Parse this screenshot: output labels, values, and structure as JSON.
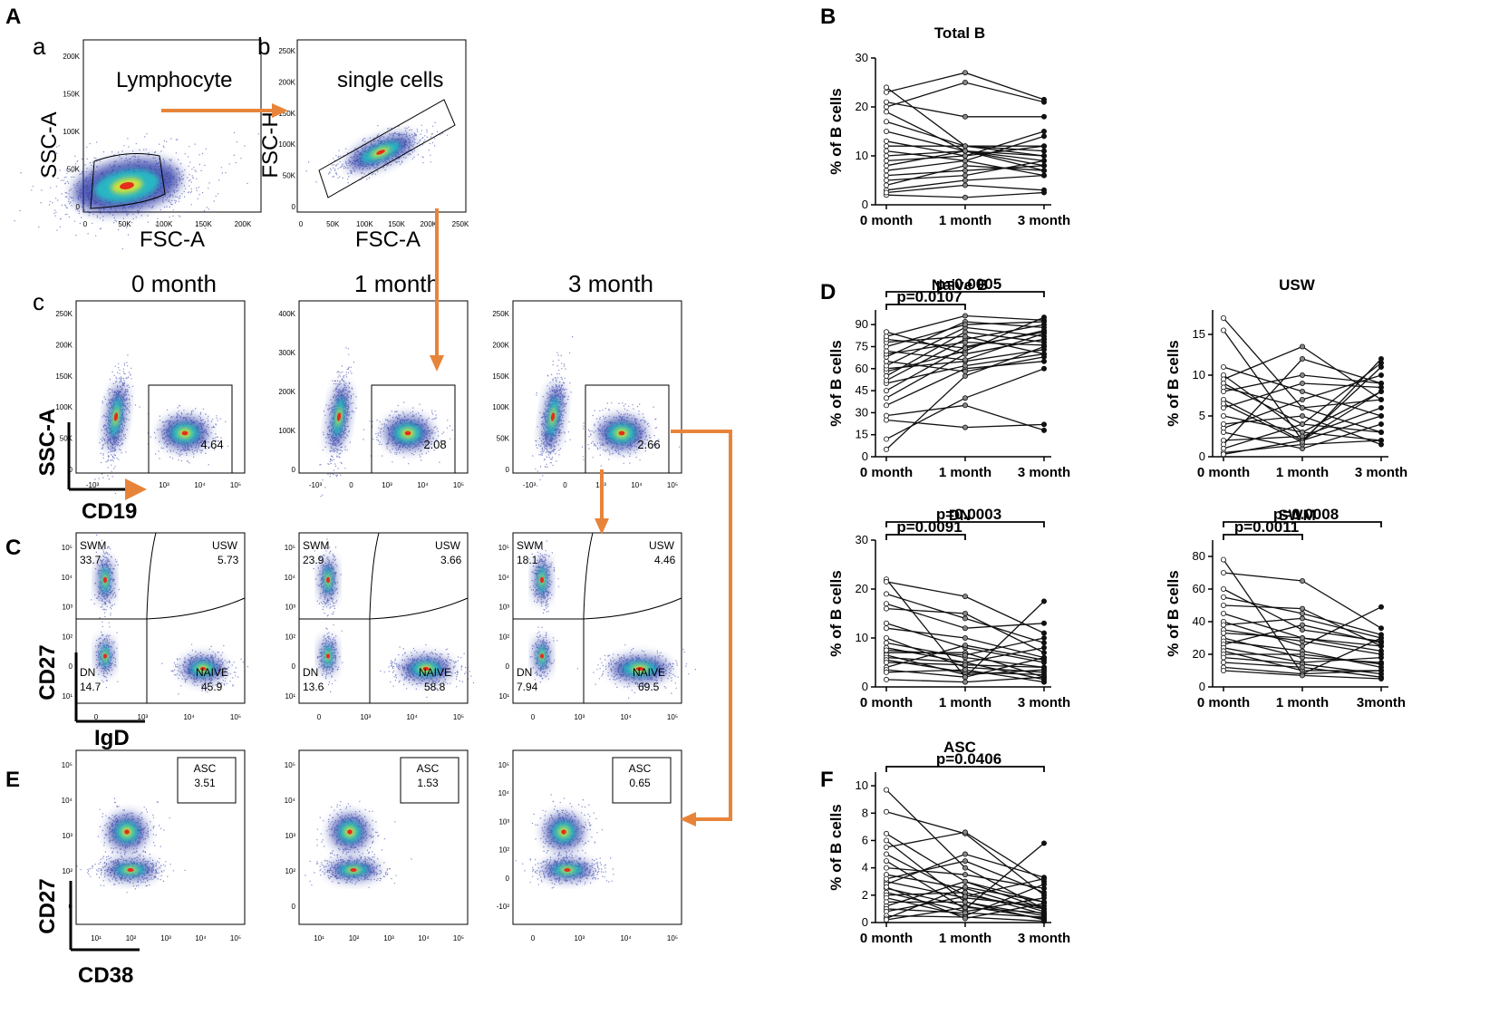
{
  "panel_labels": {
    "A": "A",
    "B": "B",
    "C": "C",
    "D": "D",
    "E": "E",
    "F": "F"
  },
  "subpanel_labels": {
    "a": "a",
    "b": "b",
    "c": "c"
  },
  "colors": {
    "arrow": "#e8843a",
    "density_low": "#1b2a9e",
    "density_mid": "#22c7c7",
    "density_high": "#e8241a"
  },
  "flow": {
    "lymphocyte": {
      "title": "Lymphocyte",
      "xlabel": "FSC-A",
      "ylabel": "SSC-A",
      "yticks": [
        "0",
        "50K",
        "100K",
        "150K",
        "200K"
      ],
      "xticks": [
        "0",
        "50K",
        "100K",
        "150K",
        "200K"
      ]
    },
    "single_cells": {
      "title": "single cells",
      "xlabel": "FSC-A",
      "ylabel": "FSC-H",
      "yticks": [
        "0",
        "50K",
        "100K",
        "150K",
        "200K",
        "250K"
      ],
      "xticks": [
        "0",
        "50K",
        "100K",
        "150K",
        "200K",
        "250K"
      ]
    },
    "timepoints": [
      "0 month",
      "1 month",
      "3 month"
    ],
    "cd19": {
      "ylabel": "SSC-A",
      "xlabel": "CD19",
      "yticks": [
        [
          "0",
          "50K",
          "100K",
          "150K",
          "200K",
          "250K"
        ],
        [
          "0",
          "100K",
          "200K",
          "300K",
          "400K"
        ],
        [
          "0",
          "50K",
          "100K",
          "150K",
          "200K",
          "250K"
        ]
      ],
      "xticks": [
        "-10³",
        "0",
        "10³",
        "10⁴",
        "10⁵"
      ],
      "gate_values": [
        "4.64",
        "2.08",
        "2.66"
      ]
    },
    "cd27_igd": {
      "ylabel": "CD27",
      "xlabel": "IgD",
      "quad_names": {
        "tl": "SWM",
        "tr": "USW",
        "bl": "DN",
        "br": "NAIVE"
      },
      "values": [
        {
          "SWM": "33.7",
          "USW": "5.73",
          "DN": "14.7",
          "NAIVE": "45.9"
        },
        {
          "SWM": "23.9",
          "USW": "3.66",
          "DN": "13.6",
          "NAIVE": "58.8"
        },
        {
          "SWM": "18.1",
          "USW": "4.46",
          "DN": "7.94",
          "NAIVE": "69.5"
        }
      ],
      "yticks": [
        "10⁵",
        "10⁴",
        "10³",
        "10²",
        "0",
        "10¹"
      ],
      "xticks": [
        "0",
        "10³",
        "10⁴",
        "10⁵"
      ]
    },
    "cd27_cd38": {
      "ylabel": "CD27",
      "xlabel": "CD38",
      "gate_name": "ASC",
      "values": [
        "3.51",
        "1.53",
        "0.65"
      ],
      "yticks": [
        "10⁵",
        "10⁴",
        "10³",
        "10²",
        "0"
      ],
      "yticks_alt": [
        "10⁵",
        "10⁴",
        "10³",
        "10²",
        "0",
        "-10²"
      ],
      "xticks": [
        "10¹",
        "10²",
        "10³",
        "10⁴",
        "10⁵"
      ],
      "xticks_alt": [
        "0",
        "10³",
        "10⁴",
        "10⁵"
      ]
    }
  },
  "chart_data": [
    {
      "id": "total_b",
      "type": "line",
      "title": "Total B",
      "ylabel": "% of B cells",
      "categories": [
        "0 month",
        "1 month",
        "3 month"
      ],
      "ylim": [
        0,
        30
      ],
      "yticks": [
        0,
        10,
        20,
        30
      ],
      "series": [
        [
          2,
          1.5,
          2.5
        ],
        [
          3,
          5,
          6
        ],
        [
          4,
          8,
          7
        ],
        [
          5,
          6,
          9
        ],
        [
          6,
          7,
          8
        ],
        [
          7,
          9,
          6
        ],
        [
          8,
          11,
          10
        ],
        [
          9,
          10,
          12
        ],
        [
          10,
          11,
          7
        ],
        [
          11,
          9,
          14
        ],
        [
          12,
          12,
          11
        ],
        [
          13,
          10,
          15
        ],
        [
          15,
          11,
          9
        ],
        [
          17,
          12,
          12
        ],
        [
          19,
          11,
          8
        ],
        [
          20,
          25,
          21
        ],
        [
          21,
          18,
          18
        ],
        [
          23,
          27,
          21.5
        ],
        [
          24,
          12,
          10
        ],
        [
          2.5,
          4,
          3
        ]
      ],
      "annotations": []
    },
    {
      "id": "naive_b",
      "type": "line",
      "title": "Naive B",
      "ylabel": "% of B cells",
      "categories": [
        "0 month",
        "1 month",
        "3 month"
      ],
      "ylim": [
        0,
        100
      ],
      "yticks": [
        0,
        15,
        30,
        45,
        60,
        75,
        90
      ],
      "series": [
        [
          5,
          55,
          75
        ],
        [
          12,
          40,
          60
        ],
        [
          25,
          20,
          22
        ],
        [
          28,
          35,
          18
        ],
        [
          35,
          60,
          65
        ],
        [
          40,
          70,
          80
        ],
        [
          45,
          75,
          85
        ],
        [
          50,
          62,
          70
        ],
        [
          52,
          80,
          90
        ],
        [
          55,
          85,
          78
        ],
        [
          58,
          72,
          95
        ],
        [
          60,
          65,
          73
        ],
        [
          62,
          88,
          82
        ],
        [
          65,
          58,
          68
        ],
        [
          68,
          92,
          88
        ],
        [
          70,
          78,
          76
        ],
        [
          72,
          66,
          84
        ],
        [
          75,
          90,
          92
        ],
        [
          78,
          82,
          70
        ],
        [
          80,
          74,
          86
        ],
        [
          82,
          96,
          93
        ],
        [
          85,
          70,
          80
        ]
      ],
      "annotations": [
        {
          "text": "p=0.0005",
          "from": 0,
          "to": 2,
          "level": 0
        },
        {
          "text": "p=0.0107",
          "from": 0,
          "to": 1,
          "level": 1
        }
      ]
    },
    {
      "id": "usw",
      "type": "line",
      "title": "USW",
      "ylabel": "% of B cells",
      "categories": [
        "0 month",
        "1 month",
        "3 month"
      ],
      "ylim": [
        0,
        18
      ],
      "yticks": [
        0,
        5,
        10,
        15
      ],
      "series": [
        [
          17,
          6,
          3
        ],
        [
          15.5,
          2,
          11
        ],
        [
          11,
          8,
          5
        ],
        [
          10,
          3,
          8
        ],
        [
          9.5,
          13.5,
          7
        ],
        [
          9,
          4,
          11.5
        ],
        [
          8.5,
          6,
          7
        ],
        [
          8,
          10,
          9
        ],
        [
          7,
          2,
          5
        ],
        [
          6,
          9,
          8.5
        ],
        [
          5,
          3,
          2
        ],
        [
          3.5,
          7,
          10
        ],
        [
          3,
          1,
          4
        ],
        [
          2,
          2.5,
          6
        ],
        [
          1.5,
          12,
          9
        ],
        [
          1,
          4,
          3
        ],
        [
          0.5,
          1.5,
          2
        ],
        [
          0.3,
          2,
          8
        ],
        [
          4,
          5,
          1.5
        ],
        [
          6.5,
          1.8,
          12
        ]
      ],
      "annotations": []
    },
    {
      "id": "dn",
      "type": "line",
      "title": "DN",
      "ylabel": "% of B cells",
      "categories": [
        "0 month",
        "1 month",
        "3 month"
      ],
      "ylim": [
        0,
        30
      ],
      "yticks": [
        0,
        10,
        20,
        30
      ],
      "series": [
        [
          22,
          2,
          17.5
        ],
        [
          21.5,
          18.5,
          11
        ],
        [
          19,
          14,
          9
        ],
        [
          17,
          12,
          13
        ],
        [
          16,
          15,
          7
        ],
        [
          13,
          8,
          5
        ],
        [
          12,
          10,
          6
        ],
        [
          10,
          4,
          3
        ],
        [
          9,
          6,
          4
        ],
        [
          8,
          5,
          8
        ],
        [
          7,
          7,
          2
        ],
        [
          6.5,
          2.5,
          3.5
        ],
        [
          6,
          5,
          1.5
        ],
        [
          5.5,
          3,
          2.5
        ],
        [
          5,
          4.5,
          4
        ],
        [
          4,
          8.5,
          5.5
        ],
        [
          3.5,
          2,
          6
        ],
        [
          3,
          3.5,
          1
        ],
        [
          1.5,
          1,
          2
        ],
        [
          7.5,
          6.5,
          10
        ]
      ],
      "annotations": [
        {
          "text": "p=0.0003",
          "from": 0,
          "to": 2,
          "level": 0
        },
        {
          "text": "p=0.0091",
          "from": 0,
          "to": 1,
          "level": 1
        }
      ]
    },
    {
      "id": "swm",
      "type": "line",
      "title": "SWM",
      "ylabel": "% of B cells",
      "categories": [
        "0 month",
        "1 month",
        "3month"
      ],
      "ylim": [
        0,
        90
      ],
      "yticks": [
        0,
        20,
        40,
        60,
        80
      ],
      "series": [
        [
          78,
          8,
          30
        ],
        [
          70,
          65,
          36
        ],
        [
          60,
          35,
          28
        ],
        [
          50,
          48,
          25
        ],
        [
          45,
          30,
          22
        ],
        [
          40,
          25,
          49
        ],
        [
          38,
          42,
          30
        ],
        [
          35,
          28,
          20
        ],
        [
          33,
          30,
          25
        ],
        [
          30,
          18,
          15
        ],
        [
          28,
          22,
          12
        ],
        [
          26,
          38,
          27
        ],
        [
          24,
          15,
          18
        ],
        [
          22,
          10,
          10
        ],
        [
          20,
          20,
          14
        ],
        [
          18,
          14,
          8
        ],
        [
          15,
          12,
          6
        ],
        [
          12,
          8,
          10
        ],
        [
          10,
          7,
          5
        ],
        [
          55,
          45,
          32
        ]
      ],
      "annotations": [
        {
          "text": "p=0.0008",
          "from": 0,
          "to": 2,
          "level": 0
        },
        {
          "text": "p=0.0011",
          "from": 0,
          "to": 1,
          "level": 1
        }
      ]
    },
    {
      "id": "asc",
      "type": "line",
      "title": "ASC",
      "ylabel": "% of B cells",
      "categories": [
        "0 month",
        "1 month",
        "3 month"
      ],
      "ylim": [
        0,
        11
      ],
      "yticks": [
        0,
        2,
        4,
        6,
        8,
        10
      ],
      "series": [
        [
          9.7,
          4,
          1
        ],
        [
          8.1,
          6.5,
          2
        ],
        [
          6.5,
          3,
          1.5
        ],
        [
          6,
          1.5,
          0.5
        ],
        [
          5.5,
          6.6,
          3
        ],
        [
          5,
          2,
          1
        ],
        [
          4.5,
          1,
          5.8
        ],
        [
          4,
          3.5,
          2.5
        ],
        [
          3.5,
          2.5,
          0.8
        ],
        [
          3,
          1.8,
          1.2
        ],
        [
          2.8,
          5,
          3.3
        ],
        [
          2.5,
          1.2,
          0.3
        ],
        [
          2.2,
          0.8,
          1.8
        ],
        [
          2,
          2.2,
          0.6
        ],
        [
          1.8,
          0.5,
          2.8
        ],
        [
          1.5,
          1.5,
          0.2
        ],
        [
          1.2,
          3,
          1
        ],
        [
          1,
          0.7,
          0.4
        ],
        [
          0.8,
          1.9,
          3.2
        ],
        [
          0.5,
          0.4,
          0.1
        ],
        [
          0.3,
          2.6,
          1.5
        ],
        [
          0.2,
          1.1,
          0.7
        ],
        [
          3.2,
          4.5,
          2.2
        ],
        [
          2.6,
          0.3,
          1.4
        ]
      ],
      "annotations": [
        {
          "text": "p=0.0406",
          "from": 0,
          "to": 2,
          "level": 0
        }
      ]
    }
  ]
}
